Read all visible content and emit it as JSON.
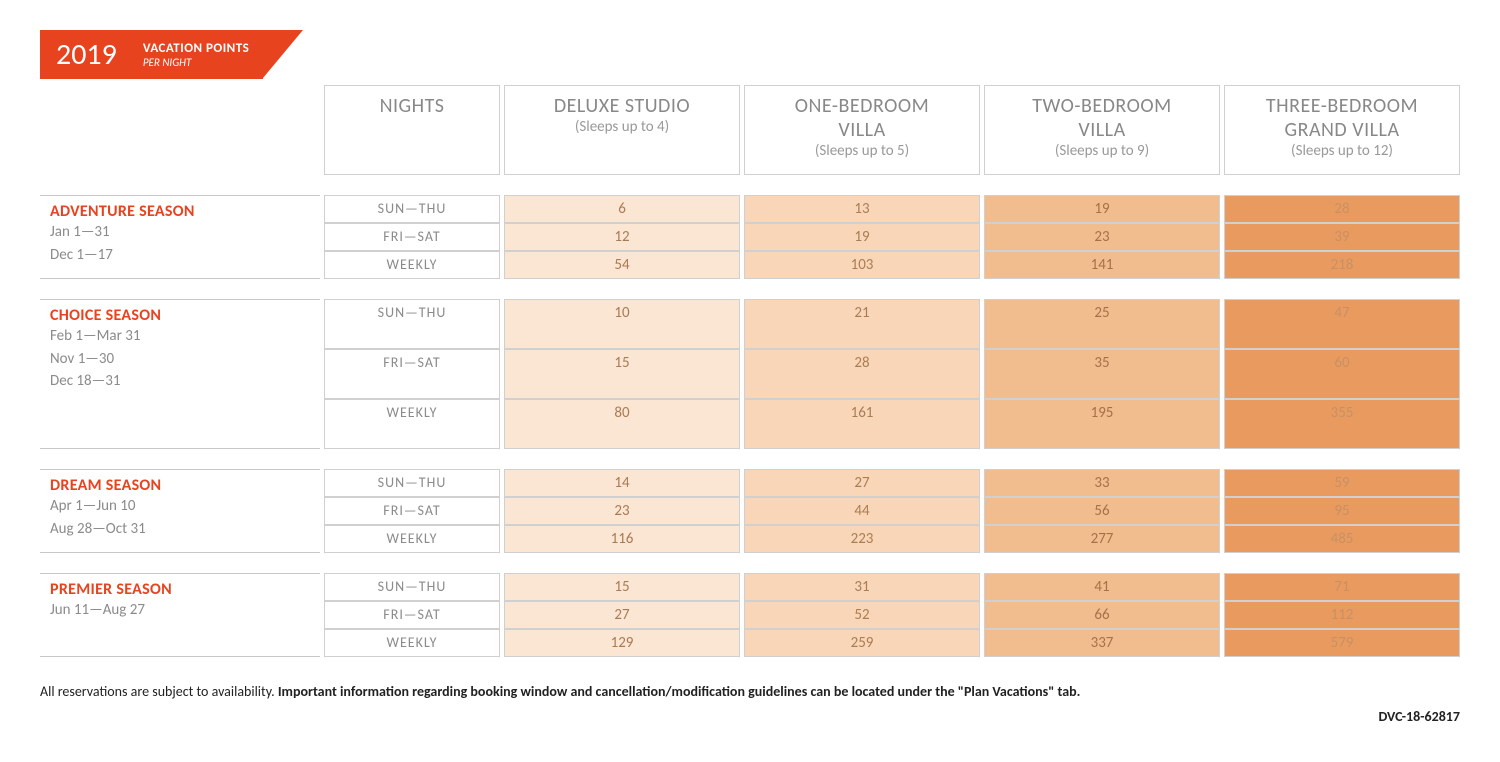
{
  "header": {
    "year": "2019",
    "title": "VACATION POINTS",
    "subtitle": "PER NIGHT"
  },
  "columns": {
    "nights": "NIGHTS",
    "rooms": [
      {
        "title": "DELUXE STUDIO",
        "sub": "(Sleeps up to 4)"
      },
      {
        "title": "ONE-BEDROOM VILLA",
        "sub": "(Sleeps up to 5)"
      },
      {
        "title": "TWO-BEDROOM VILLA",
        "sub": "(Sleeps up to 9)"
      },
      {
        "title": "THREE-BEDROOM GRAND VILLA",
        "sub": "(Sleeps up to 12)"
      }
    ]
  },
  "night_labels": [
    "SUN—THU",
    "FRI—SAT",
    "WEEKLY"
  ],
  "cell_text_colors": [
    "#a87b55",
    "#aa7d56",
    "#a87048",
    "#c99064"
  ],
  "cell_bg_colors": [
    "#fbe6d3",
    "#f8d6b7",
    "#f1bd8f",
    "#e99b5f"
  ],
  "seasons": [
    {
      "name": "ADVENTURE SEASON",
      "dates": [
        "Jan 1—31",
        "Dec 1—17"
      ],
      "rows": [
        [
          "6",
          "13",
          "19",
          "28"
        ],
        [
          "12",
          "19",
          "23",
          "39"
        ],
        [
          "54",
          "103",
          "141",
          "218"
        ]
      ]
    },
    {
      "name": "CHOICE SEASON",
      "dates": [
        "Feb 1—Mar 31",
        "Nov 1—30",
        "Dec 18—31"
      ],
      "rows": [
        [
          "10",
          "21",
          "25",
          "47"
        ],
        [
          "15",
          "28",
          "35",
          "60"
        ],
        [
          "80",
          "161",
          "195",
          "355"
        ]
      ]
    },
    {
      "name": "DREAM SEASON",
      "dates": [
        "Apr 1—Jun 10",
        "Aug 28—Oct 31"
      ],
      "rows": [
        [
          "14",
          "27",
          "33",
          "59"
        ],
        [
          "23",
          "44",
          "56",
          "95"
        ],
        [
          "116",
          "223",
          "277",
          "485"
        ]
      ]
    },
    {
      "name": "PREMIER SEASON",
      "dates": [
        "Jun 11—Aug 27"
      ],
      "rows": [
        [
          "15",
          "31",
          "41",
          "71"
        ],
        [
          "27",
          "52",
          "66",
          "112"
        ],
        [
          "129",
          "259",
          "337",
          "579"
        ]
      ]
    }
  ],
  "footer": {
    "plain": "All reservations are subject to availability. ",
    "bold": "Important information regarding booking window and cancellation/modification guidelines can be located under the \"Plan Vacations\" tab.",
    "code": "DVC-18-62817"
  }
}
